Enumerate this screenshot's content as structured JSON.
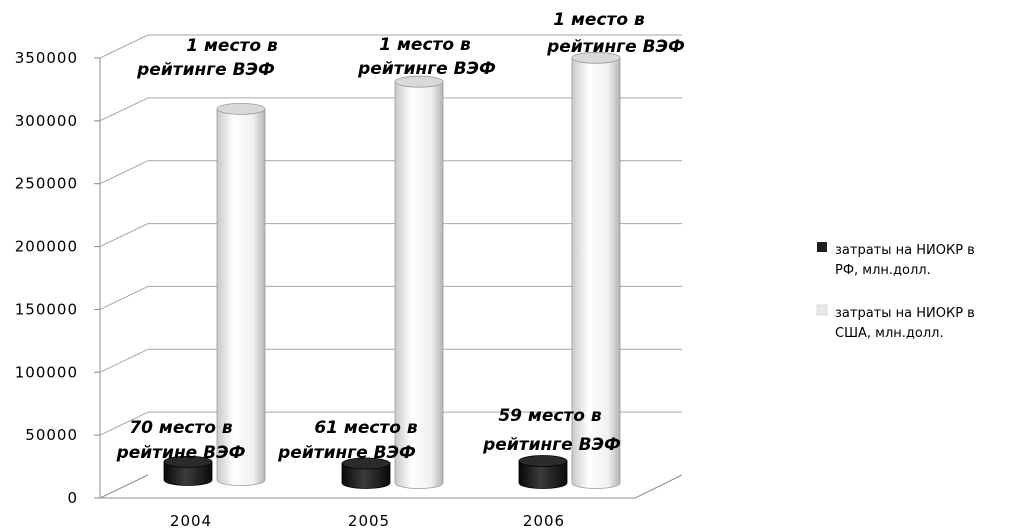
{
  "chart_data": {
    "type": "bar",
    "categories": [
      "2004",
      "2005",
      "2006"
    ],
    "series": [
      {
        "name": "затраты на НИОКР в РФ, млн.долл.",
        "values": [
          14500,
          15500,
          17500
        ],
        "color": "#1e1e1e",
        "annotations": [
          [
            "70 место  в",
            "рейтине ВЭФ"
          ],
          [
            "61 место в",
            "рейтинге ВЭФ"
          ],
          [
            "59 место в",
            "рейтинге ВЭФ"
          ]
        ]
      },
      {
        "name": "затраты на НИОКР в США, млн.долл.",
        "values": [
          300000,
          324000,
          343000
        ],
        "color": "#e8e8e8",
        "annotations": [
          [
            "1 место в",
            "рейтинге ВЭФ"
          ],
          [
            "1 место в",
            "рейтинге ВЭФ"
          ],
          [
            "1 место в",
            "рейтинге ВЭФ"
          ]
        ]
      }
    ],
    "y_ticks": [
      "0",
      "50000",
      "100000",
      "150000",
      "200000",
      "250000",
      "300000",
      "350000"
    ],
    "ylim": [
      0,
      350000
    ],
    "grid": true,
    "legend_position": "right",
    "style": "3d-cylinder"
  }
}
